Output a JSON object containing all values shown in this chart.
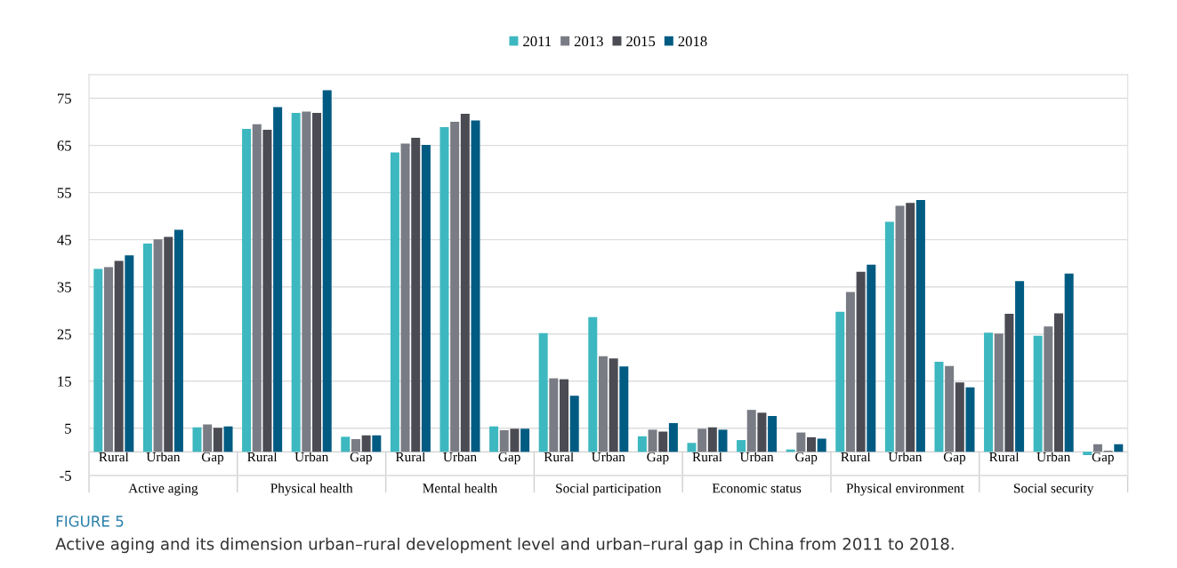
{
  "chart_data": {
    "type": "bar",
    "categories": [
      "Rural",
      "Urban",
      "Gap",
      "Rural",
      "Urban",
      "Gap",
      "Rural",
      "Urban",
      "Gap",
      "Rural",
      "Urban",
      "Gap",
      "Rural",
      "Urban",
      "Gap",
      "Rural",
      "Urban",
      "Gap",
      "Rural",
      "Urban",
      "Gap"
    ],
    "series": [
      {
        "name": "2011",
        "color": "#3db8c0",
        "values": [
          38.8,
          44.2,
          5.2,
          68.5,
          71.9,
          3.2,
          63.5,
          68.9,
          5.4,
          25.2,
          28.6,
          3.3,
          1.9,
          2.5,
          0.5,
          29.7,
          48.8,
          19.1,
          25.3,
          24.6,
          -0.7
        ]
      },
      {
        "name": "2013",
        "color": "#797c84",
        "values": [
          39.2,
          45.1,
          5.8,
          69.5,
          72.2,
          2.7,
          65.4,
          70.0,
          4.6,
          15.6,
          20.3,
          4.7,
          4.9,
          8.9,
          4.1,
          33.9,
          52.2,
          18.2,
          25.1,
          26.6,
          1.6
        ]
      },
      {
        "name": "2015",
        "color": "#4a4b53",
        "values": [
          40.5,
          45.6,
          5.1,
          68.3,
          71.9,
          3.5,
          66.6,
          71.7,
          4.9,
          15.4,
          19.8,
          4.3,
          5.2,
          8.3,
          3.1,
          38.2,
          52.8,
          14.7,
          29.3,
          29.4,
          0.2
        ]
      },
      {
        "name": "2018",
        "color": "#005b82",
        "values": [
          41.7,
          47.1,
          5.4,
          73.1,
          76.7,
          3.5,
          65.1,
          70.3,
          4.9,
          11.9,
          18.1,
          6.1,
          4.7,
          7.6,
          2.8,
          39.7,
          53.4,
          13.7,
          36.2,
          37.8,
          1.6
        ]
      }
    ],
    "ylim": [
      -5,
      80
    ],
    "yticks": [
      -5,
      5,
      15,
      25,
      35,
      45,
      55,
      65,
      75
    ],
    "grid": "y",
    "legend": "top",
    "annotations": [
      "Active aging",
      "Physical health",
      "Mental health",
      "Social participation",
      "Economic status",
      "Physical environment",
      "Social security",
      "FIGURE 5",
      "Active aging and its dimension urban–rural development level and urban–rural gap in China from 2011 to 2018."
    ]
  }
}
